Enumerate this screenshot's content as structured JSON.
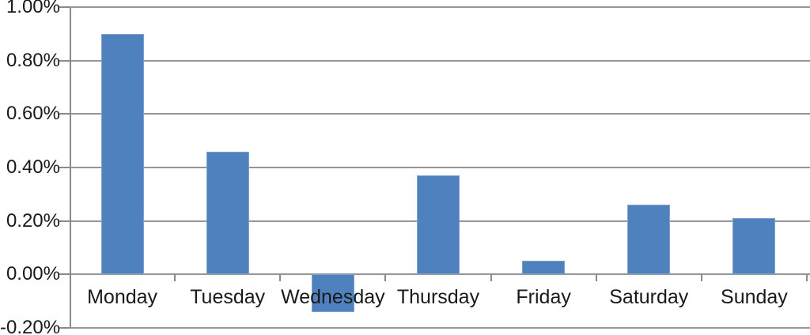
{
  "chart_data": {
    "type": "bar",
    "title": "",
    "xlabel": "",
    "ylabel": "",
    "categories": [
      "Monday",
      "Tuesday",
      "Wednesday",
      "Thursday",
      "Friday",
      "Saturday",
      "Sunday"
    ],
    "values": [
      0.9,
      0.46,
      -0.14,
      0.37,
      0.05,
      0.26,
      0.21
    ],
    "value_unit": "%",
    "ylim": [
      -0.2,
      1.0
    ],
    "ytick_step": 0.2,
    "ytick_labels": [
      "1.00%",
      "0.80%",
      "0.60%",
      "0.40%",
      "0.20%",
      "0.00%",
      "-0.20%"
    ],
    "grid": true,
    "legend": false,
    "colors": {
      "bar_fill": "#4e81bd",
      "bar_border": "#7da2ce",
      "gridline": "#969696",
      "axis": "#8a8a8a",
      "text": "#1a1a1a",
      "background": "#ffffff"
    }
  }
}
